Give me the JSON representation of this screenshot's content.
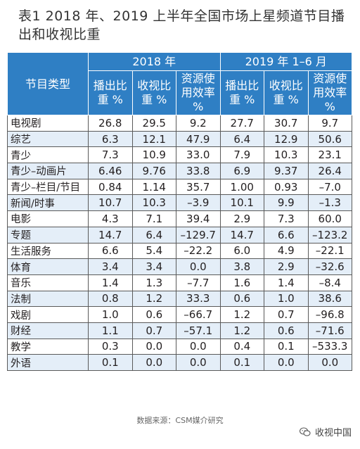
{
  "title": {
    "line1": "表1  2018 年、2019 上半年全国市场上星频道节目播",
    "line2": "出和收视比重"
  },
  "table": {
    "type_header": "节目类型",
    "group_2018": "2018 年",
    "group_2019": "2019 年 1–6 月",
    "sub_headers": [
      [
        "播出比",
        "重 %"
      ],
      [
        "收视比",
        "重 %"
      ],
      [
        "资源使",
        "用效率",
        "%"
      ],
      [
        "播出比",
        "重 %"
      ],
      [
        "收视比",
        "重 %"
      ],
      [
        "资源使",
        "用效率",
        "%"
      ]
    ],
    "rows": [
      {
        "name": "电视剧",
        "values": [
          "26.8",
          "29.5",
          "9.2",
          "27.7",
          "30.7",
          "9.7"
        ]
      },
      {
        "name": "综艺",
        "values": [
          "6.3",
          "12.1",
          "47.9",
          "6.4",
          "12.9",
          "50.6"
        ]
      },
      {
        "name": "青少",
        "values": [
          "7.3",
          "10.9",
          "33.0",
          "7.9",
          "10.3",
          "23.1"
        ]
      },
      {
        "name": "青少–动画片",
        "values": [
          "6.46",
          "9.76",
          "33.8",
          "6.9",
          "9.37",
          "26.4"
        ]
      },
      {
        "name": "青少–栏目/节目",
        "values": [
          "0.84",
          "1.14",
          "35.7",
          "1.00",
          "0.93",
          "–7.0"
        ]
      },
      {
        "name": "新闻/时事",
        "values": [
          "10.7",
          "10.3",
          "–3.9",
          "10.1",
          "9.9",
          "–1.3"
        ]
      },
      {
        "name": "电影",
        "values": [
          "4.3",
          "7.1",
          "39.4",
          "2.9",
          "7.3",
          "60.0"
        ]
      },
      {
        "name": "专题",
        "values": [
          "14.7",
          "6.4",
          "–129.7",
          "14.7",
          "6.6",
          "–123.2"
        ]
      },
      {
        "name": "生活服务",
        "values": [
          "6.6",
          "5.4",
          "–22.2",
          "6.0",
          "4.9",
          "–22.1"
        ]
      },
      {
        "name": "体育",
        "values": [
          "3.4",
          "3.4",
          "0.0",
          "3.8",
          "2.9",
          "–32.6"
        ]
      },
      {
        "name": "音乐",
        "values": [
          "1.4",
          "1.3",
          "–7.7",
          "1.6",
          "1.4",
          "–8.4"
        ]
      },
      {
        "name": "法制",
        "values": [
          "0.8",
          "1.2",
          "33.3",
          "0.6",
          "1.0",
          "38.6"
        ]
      },
      {
        "name": "戏剧",
        "values": [
          "1.0",
          "0.6",
          "–66.7",
          "1.2",
          "0.7",
          "–96.8"
        ]
      },
      {
        "name": "财经",
        "values": [
          "1.1",
          "0.7",
          "–57.1",
          "1.2",
          "0.6",
          "–71.6"
        ]
      },
      {
        "name": "教学",
        "values": [
          "0.3",
          "0.0",
          "0.0",
          "0.4",
          "0.1",
          "–533.3"
        ]
      },
      {
        "name": "外语",
        "values": [
          "0.1",
          "0.0",
          "0.0",
          "0.1",
          "0.0",
          "0.0"
        ]
      }
    ]
  },
  "source": "数据来源：CSM媒介研究",
  "brand": {
    "icon": "wechat-icon",
    "name": "收视中国"
  }
}
